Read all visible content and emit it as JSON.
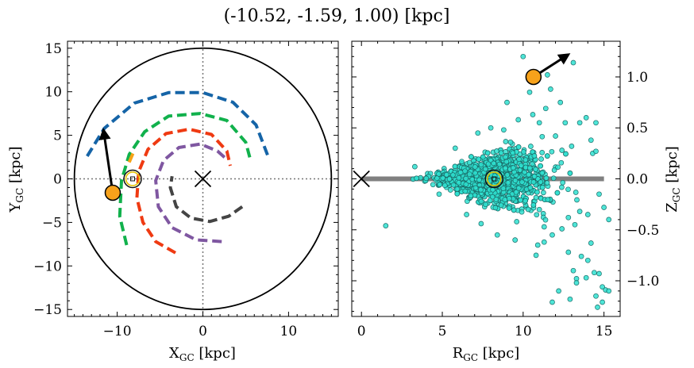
{
  "title": "(-10.52, -1.59, 1.00) [kpc]",
  "chart_data": [
    {
      "type": "scatter",
      "panel": "face-on Galactic plane",
      "xlabel": "X",
      "xlabel_sub": "GC",
      "xlabel_unit": " [kpc]",
      "ylabel": "Y",
      "ylabel_sub": "GC",
      "ylabel_unit": " [kpc]",
      "xlim": [
        -15.8,
        15.8
      ],
      "ylim": [
        -15.8,
        15.8
      ],
      "xticks": [
        -10,
        0,
        10
      ],
      "yticks": [
        -15,
        -10,
        -5,
        0,
        5,
        10,
        15
      ],
      "xtick_labels": [
        "−10",
        "0",
        "10"
      ],
      "ytick_labels": [
        "−15",
        "−10",
        "−5",
        "0",
        "5",
        "10",
        "15"
      ],
      "grid": false,
      "boundary_radius": 15,
      "galactic_center": [
        0,
        0
      ],
      "sun": [
        -8.2,
        0
      ],
      "object": [
        -10.52,
        -1.59
      ],
      "velocity_arrow_end": [
        -11.6,
        5.6
      ],
      "spiral_arms": [
        {
          "color": "#1564a7",
          "points": [
            [
              -13.5,
              2.6
            ],
            [
              -11.5,
              5.8
            ],
            [
              -8.0,
              8.7
            ],
            [
              -4.0,
              9.9
            ],
            [
              0.0,
              9.9
            ],
            [
              3.5,
              8.8
            ],
            [
              6.2,
              6.2
            ],
            [
              7.6,
              2.6
            ]
          ]
        },
        {
          "color": "#11b14c",
          "points": [
            [
              -8.9,
              -7.6
            ],
            [
              -9.7,
              -4.3
            ],
            [
              -9.5,
              -0.2
            ],
            [
              -8.6,
              2.8
            ],
            [
              -6.8,
              5.4
            ],
            [
              -4.0,
              7.2
            ],
            [
              -0.3,
              7.5
            ],
            [
              2.8,
              6.7
            ],
            [
              5.0,
              4.2
            ],
            [
              5.6,
              2.0
            ]
          ]
        },
        {
          "color": "#ef3a12",
          "points": [
            [
              -3.2,
              -8.5
            ],
            [
              -5.5,
              -7.2
            ],
            [
              -7.0,
              -5.0
            ],
            [
              -7.7,
              -2.2
            ],
            [
              -7.5,
              0.8
            ],
            [
              -6.4,
              3.4
            ],
            [
              -4.3,
              5.2
            ],
            [
              -1.6,
              5.7
            ],
            [
              1.0,
              5.1
            ],
            [
              2.8,
              3.2
            ],
            [
              3.2,
              1.5
            ]
          ]
        },
        {
          "color": "#f5a316",
          "points": [
            [
              -8.6,
              1.9
            ],
            [
              -8.0,
              3.3
            ]
          ]
        },
        {
          "color": "#7f57a1",
          "points": [
            [
              2.2,
              -7.2
            ],
            [
              -0.8,
              -7.0
            ],
            [
              -3.6,
              -5.6
            ],
            [
              -5.2,
              -3.2
            ],
            [
              -5.5,
              -0.2
            ],
            [
              -4.6,
              2.1
            ],
            [
              -2.8,
              3.6
            ],
            [
              -0.3,
              4.0
            ],
            [
              1.7,
              3.2
            ],
            [
              2.6,
              2.4
            ]
          ]
        },
        {
          "color": "#444444",
          "points": [
            [
              4.6,
              -3.2
            ],
            [
              3.0,
              -4.3
            ],
            [
              0.8,
              -4.9
            ],
            [
              -1.4,
              -4.5
            ],
            [
              -3.1,
              -3.2
            ],
            [
              -3.8,
              -1.0
            ],
            [
              -3.6,
              0.3
            ]
          ]
        }
      ]
    },
    {
      "type": "scatter",
      "panel": "edge-on R-Z plane",
      "xlabel": "R",
      "xlabel_sub": "GC",
      "xlabel_unit": " [kpc]",
      "ylabel": "Z",
      "ylabel_sub": "GC",
      "ylabel_unit": " [kpc]",
      "xlim": [
        -0.6,
        16.0
      ],
      "ylim": [
        -1.35,
        1.35
      ],
      "xticks": [
        0,
        5,
        10,
        15
      ],
      "yticks": [
        -1.0,
        -0.5,
        0.0,
        0.5,
        1.0
      ],
      "xtick_labels": [
        "0",
        "5",
        "10",
        "15"
      ],
      "ytick_labels": [
        "−1.0",
        "−0.5",
        "0.0",
        "0.5",
        "1.0"
      ],
      "y_axis_side": "right",
      "grid": false,
      "galactic_center": [
        0,
        0
      ],
      "sun": [
        8.2,
        0.0
      ],
      "object": [
        10.64,
        1.0
      ],
      "velocity_arrow_end": [
        12.8,
        1.22
      ],
      "disk_line": {
        "x": [
          0,
          15
        ],
        "y": 0,
        "color": "#808080"
      },
      "stars": {
        "color": "#2fe0d0",
        "edgecolor": "#1a6a66",
        "n": 1500,
        "note": "dense cloud of tracer stars spreading from R≈3 to R≈15.5 kpc, widening in Z with R",
        "outliers": [
          [
            1.5,
            -0.46
          ],
          [
            10.0,
            1.2
          ],
          [
            9.0,
            0.75
          ],
          [
            8.8,
            0.48
          ],
          [
            11.5,
            1.02
          ],
          [
            11.7,
            0.88
          ],
          [
            13.1,
            1.14
          ],
          [
            12.3,
            0.75
          ],
          [
            11.8,
            -0.55
          ],
          [
            12.4,
            -0.49
          ],
          [
            12.8,
            -0.72
          ],
          [
            13.1,
            -0.9
          ],
          [
            13.3,
            -0.98
          ],
          [
            13.6,
            -0.76
          ],
          [
            13.9,
            -0.97
          ],
          [
            14.2,
            -0.63
          ],
          [
            14.4,
            -0.92
          ],
          [
            14.7,
            -0.93
          ],
          [
            14.9,
            -1.06
          ],
          [
            15.1,
            -1.09
          ],
          [
            14.5,
            -1.15
          ],
          [
            14.6,
            -1.26
          ],
          [
            14.9,
            -1.21
          ],
          [
            15.3,
            -1.1
          ],
          [
            12.2,
            -1.1
          ],
          [
            12.9,
            -1.18
          ],
          [
            13.3,
            -1.02
          ],
          [
            11.8,
            -1.21
          ],
          [
            14.0,
            -0.8
          ],
          [
            14.3,
            0.25
          ],
          [
            14.5,
            0.27
          ],
          [
            13.5,
            0.55
          ],
          [
            13.9,
            0.6
          ],
          [
            14.2,
            0.38
          ],
          [
            14.5,
            0.55
          ],
          [
            14.7,
            -0.15
          ],
          [
            15.0,
            -0.28
          ],
          [
            15.3,
            -0.4
          ],
          [
            13.5,
            -0.32
          ],
          [
            10.9,
            -0.65
          ],
          [
            9.5,
            -0.6
          ],
          [
            8.4,
            -0.55
          ],
          [
            9.7,
            0.58
          ],
          [
            10.6,
            0.63
          ],
          [
            11.4,
            0.69
          ],
          [
            12.0,
            0.42
          ],
          [
            7.2,
            0.45
          ],
          [
            6.5,
            -0.35
          ],
          [
            5.8,
            0.3
          ],
          [
            7.4,
            -0.44
          ],
          [
            8.0,
            0.5
          ],
          [
            10.4,
            0.85
          ],
          [
            10.8,
            -0.75
          ],
          [
            11.0,
            0.55
          ],
          [
            11.3,
            -0.62
          ],
          [
            12.6,
            0.55
          ],
          [
            12.8,
            -0.38
          ],
          [
            13.0,
            0.32
          ],
          [
            13.2,
            -0.45
          ],
          [
            14.0,
            -0.35
          ],
          [
            12.4,
            0.28
          ],
          [
            3.3,
            0.12
          ],
          [
            4.8,
            -0.15
          ],
          [
            6.2,
            0.17
          ],
          [
            9.6,
            -0.42
          ]
        ]
      }
    }
  ]
}
